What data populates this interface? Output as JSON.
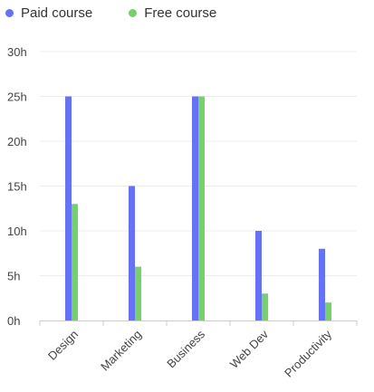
{
  "chart_data": {
    "type": "bar",
    "categories": [
      "Design",
      "Marketing",
      "Business",
      "Web Dev",
      "Productivity"
    ],
    "series": [
      {
        "name": "Paid course",
        "color": "#6672F5",
        "values": [
          25,
          15,
          25,
          10,
          8
        ]
      },
      {
        "name": "Free course",
        "color": "#76D06B",
        "values": [
          13,
          6,
          25,
          3,
          2
        ]
      }
    ],
    "y_ticks": [
      "0h",
      "5h",
      "10h",
      "15h",
      "20h",
      "25h",
      "30h"
    ],
    "ylim": [
      0,
      30
    ],
    "y_unit": "h",
    "grid": true,
    "legend_position": "top-left",
    "title": "",
    "xlabel": "",
    "ylabel": ""
  }
}
